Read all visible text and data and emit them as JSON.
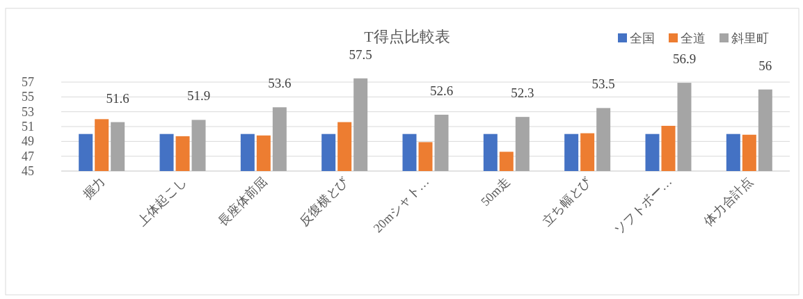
{
  "chart_data": {
    "type": "bar",
    "title": "T得点比較表",
    "categories": [
      "握力",
      "上体起こし",
      "長座体前屈",
      "反復横とび",
      "20mシャト…",
      "50m走",
      "立ち幅とび",
      "ソフトボー…",
      "体力合計点"
    ],
    "series": [
      {
        "name": "全国",
        "color": "#4472c4",
        "values": [
          50,
          50,
          50,
          50,
          50,
          50,
          50,
          50,
          50
        ]
      },
      {
        "name": "全道",
        "color": "#ed7d31",
        "values": [
          52.0,
          49.7,
          49.8,
          51.6,
          48.9,
          47.6,
          50.1,
          51.1,
          49.9
        ]
      },
      {
        "name": "斜里町",
        "color": "#a5a5a5",
        "values": [
          51.6,
          51.9,
          53.6,
          57.5,
          52.6,
          52.3,
          53.5,
          56.9,
          56
        ],
        "value_labels": [
          "51.6",
          "51.9",
          "53.6",
          "57.5",
          "52.6",
          "52.3",
          "53.5",
          "56.9",
          "56"
        ]
      }
    ],
    "ylim": [
      45,
      57.5
    ],
    "yticks": [
      45,
      47,
      49,
      51,
      53,
      55,
      57
    ],
    "grid": "y",
    "legend": "top right"
  }
}
